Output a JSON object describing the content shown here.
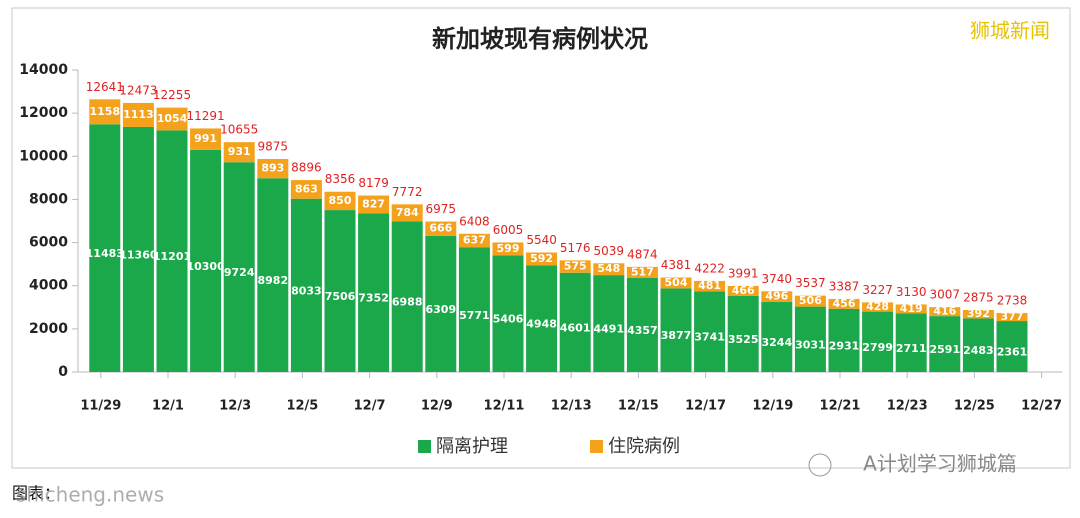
{
  "chart_data": {
    "type": "stacked_bar",
    "title": "新加坡现有病例状况",
    "watermark": "狮城新闻",
    "footer_logo": "A计划学习狮城篇",
    "caption": "图表：",
    "caption_watermark": "shicheng.news",
    "categories": [
      "11/29",
      null,
      "12/1",
      null,
      "12/3",
      null,
      "12/5",
      null,
      "12/7",
      null,
      "12/9",
      null,
      "12/11",
      null,
      "12/13",
      null,
      "12/15",
      null,
      "12/17",
      null,
      "12/19",
      null,
      "12/21",
      null,
      "12/23",
      null,
      "12/25",
      null,
      "12/27"
    ],
    "series": [
      {
        "name": "隔离护理",
        "color": "#1ba84b",
        "values": [
          11483,
          11360,
          11201,
          10300,
          9724,
          8982,
          8033,
          7506,
          7352,
          6988,
          6309,
          5771,
          5406,
          4948,
          4601,
          4491,
          4357,
          3877,
          3741,
          3525,
          3244,
          3031,
          2931,
          2799,
          2711,
          2591,
          2483,
          2361,
          null
        ]
      },
      {
        "name": "住院病例",
        "color": "#f4a11c",
        "values": [
          1158,
          1113,
          1054,
          991,
          931,
          893,
          863,
          850,
          827,
          784,
          666,
          637,
          599,
          592,
          575,
          548,
          517,
          504,
          481,
          466,
          496,
          506,
          456,
          428,
          419,
          416,
          392,
          377,
          null
        ]
      }
    ],
    "totals": [
      12641,
      12473,
      12255,
      11291,
      10655,
      9875,
      8896,
      8356,
      8179,
      7772,
      6975,
      6408,
      6005,
      5540,
      5176,
      5039,
      4874,
      4381,
      4222,
      3991,
      3740,
      3537,
      3387,
      3227,
      3130,
      3007,
      2875,
      2738,
      null
    ],
    "totals_color": "#e02222",
    "ylim": [
      0,
      14000
    ],
    "yticks": [
      0,
      2000,
      4000,
      6000,
      8000,
      10000,
      12000,
      14000
    ],
    "legend": "bottom"
  }
}
